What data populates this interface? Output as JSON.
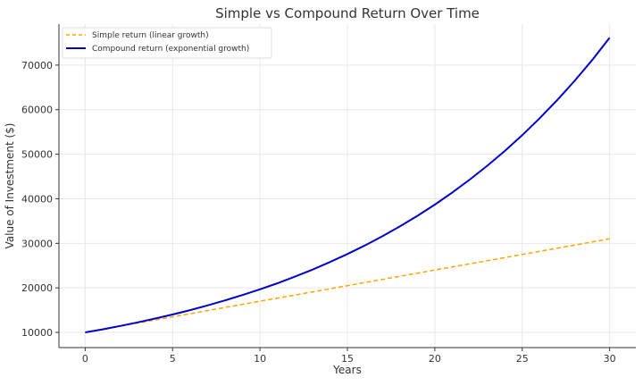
{
  "chart_data": {
    "type": "line",
    "title": "Simple vs Compound Return Over Time",
    "xlabel": "Years",
    "ylabel": "Value of Investment ($)",
    "xlim": [
      -1.5,
      31.5
    ],
    "ylim": [
      6600,
      79200
    ],
    "xticks": [
      0,
      5,
      10,
      15,
      20,
      25,
      30
    ],
    "yticks": [
      10000,
      20000,
      30000,
      40000,
      50000,
      60000,
      70000
    ],
    "grid": true,
    "legend_position": "top-left",
    "x": [
      0,
      1,
      2,
      3,
      4,
      5,
      6,
      7,
      8,
      9,
      10,
      11,
      12,
      13,
      14,
      15,
      16,
      17,
      18,
      19,
      20,
      21,
      22,
      23,
      24,
      25,
      26,
      27,
      28,
      29,
      30
    ],
    "series": [
      {
        "name": "Simple return (linear growth)",
        "color": "#ffa500",
        "style": "dashed",
        "values": [
          10000,
          10700,
          11400,
          12100,
          12800,
          13500,
          14200,
          14900,
          15600,
          16300,
          17000,
          17700,
          18400,
          19100,
          19800,
          20500,
          21200,
          21900,
          22600,
          23300,
          24000,
          24700,
          25400,
          26100,
          26800,
          27500,
          28200,
          28900,
          29600,
          30300,
          31000
        ]
      },
      {
        "name": "Compound return (exponential growth)",
        "color": "#0000cd",
        "style": "solid",
        "values": [
          10000,
          10700,
          11449,
          12250,
          13108,
          14026,
          15007,
          16058,
          17182,
          18385,
          19672,
          21049,
          22522,
          24098,
          25785,
          27590,
          29522,
          31588,
          33799,
          36165,
          38697,
          41406,
          44304,
          47405,
          50724,
          54274,
          58074,
          62139,
          66488,
          71143,
          76123
        ]
      }
    ]
  }
}
